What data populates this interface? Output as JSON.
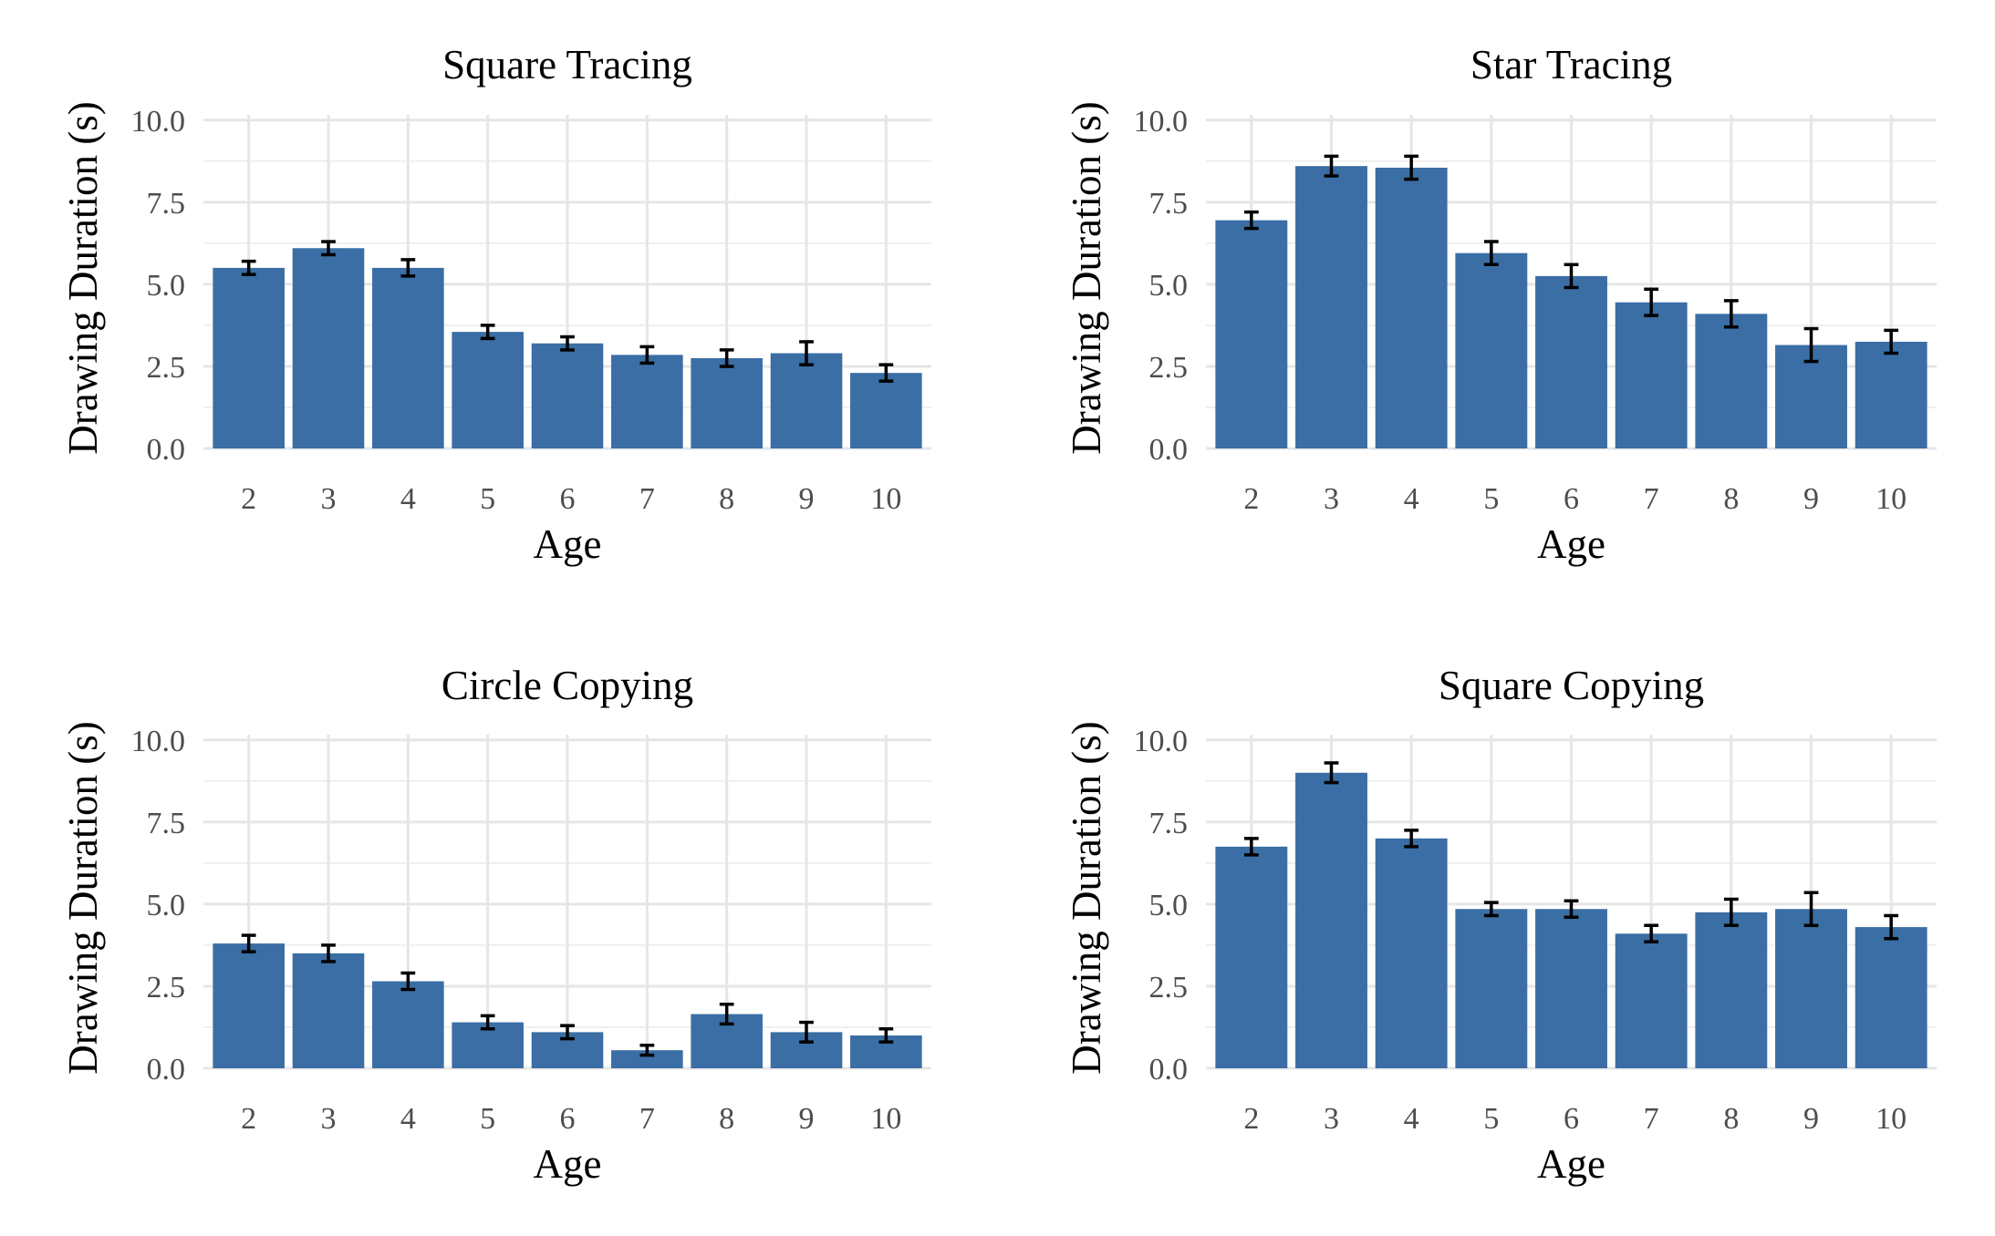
{
  "chart_data": [
    {
      "type": "bar",
      "title": "Square Tracing",
      "xlabel": "Age",
      "ylabel": "Drawing Duration (s)",
      "ylim": [
        0,
        10
      ],
      "yticks": [
        "0.0",
        "2.5",
        "5.0",
        "7.5",
        "10.0"
      ],
      "categories": [
        "2",
        "3",
        "4",
        "5",
        "6",
        "7",
        "8",
        "9",
        "10"
      ],
      "values": [
        5.5,
        6.1,
        5.5,
        3.55,
        3.2,
        2.85,
        2.75,
        2.9,
        2.3
      ],
      "errors": [
        0.2,
        0.2,
        0.25,
        0.2,
        0.2,
        0.25,
        0.25,
        0.35,
        0.25
      ],
      "color": "#3a6ea5",
      "grid": true
    },
    {
      "type": "bar",
      "title": "Star Tracing",
      "xlabel": "Age",
      "ylabel": "Drawing Duration (s)",
      "ylim": [
        0,
        10
      ],
      "yticks": [
        "0.0",
        "2.5",
        "5.0",
        "7.5",
        "10.0"
      ],
      "categories": [
        "2",
        "3",
        "4",
        "5",
        "6",
        "7",
        "8",
        "9",
        "10"
      ],
      "values": [
        6.95,
        8.6,
        8.55,
        5.95,
        5.25,
        4.45,
        4.1,
        3.15,
        3.25
      ],
      "errors": [
        0.25,
        0.3,
        0.35,
        0.35,
        0.35,
        0.4,
        0.4,
        0.5,
        0.35
      ],
      "color": "#3a6ea5",
      "grid": true
    },
    {
      "type": "bar",
      "title": "Circle Copying",
      "xlabel": "Age",
      "ylabel": "Drawing Duration (s)",
      "ylim": [
        0,
        10
      ],
      "yticks": [
        "0.0",
        "2.5",
        "5.0",
        "7.5",
        "10.0"
      ],
      "categories": [
        "2",
        "3",
        "4",
        "5",
        "6",
        "7",
        "8",
        "9",
        "10"
      ],
      "values": [
        3.8,
        3.5,
        2.65,
        1.4,
        1.1,
        0.55,
        1.65,
        1.1,
        1.0
      ],
      "errors": [
        0.25,
        0.25,
        0.25,
        0.2,
        0.2,
        0.15,
        0.3,
        0.3,
        0.2
      ],
      "color": "#3a6ea5",
      "grid": true
    },
    {
      "type": "bar",
      "title": "Square Copying",
      "xlabel": "Age",
      "ylabel": "Drawing Duration (s)",
      "ylim": [
        0,
        10
      ],
      "yticks": [
        "0.0",
        "2.5",
        "5.0",
        "7.5",
        "10.0"
      ],
      "categories": [
        "2",
        "3",
        "4",
        "5",
        "6",
        "7",
        "8",
        "9",
        "10"
      ],
      "values": [
        6.75,
        9.0,
        7.0,
        4.85,
        4.85,
        4.1,
        4.75,
        4.85,
        4.3
      ],
      "errors": [
        0.25,
        0.3,
        0.25,
        0.2,
        0.25,
        0.25,
        0.4,
        0.5,
        0.35
      ],
      "color": "#3a6ea5",
      "grid": true
    }
  ]
}
